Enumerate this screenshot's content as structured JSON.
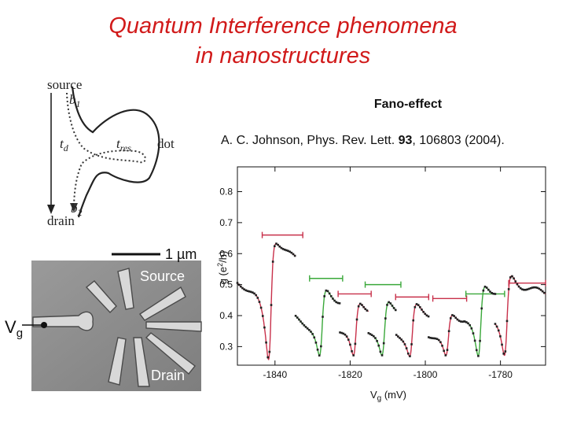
{
  "title": {
    "line1": "Quantum Interference phenomena",
    "line2": "in nanostructures"
  },
  "subtitle": "Fano-effect",
  "reference": {
    "prefix": "A. C. Johnson, Phys. Rev. Lett. ",
    "volume": "93",
    "suffix": ", 106803 (2004)."
  },
  "schematic": {
    "source": "source",
    "drain": "drain",
    "b1": "b",
    "b1_sub": "1",
    "b2": "b",
    "b2_sub": "2",
    "td": "t",
    "td_sub": "d",
    "tres": "t",
    "tres_sub": "res",
    "dot": "dot"
  },
  "micrograph": {
    "scale_label": "1 µm",
    "source_label": "Source",
    "drain_label": "Drain",
    "gate_label": "V",
    "gate_sub": "g"
  },
  "colors": {
    "title": "#d11a1a",
    "red_series": "#c8304a",
    "green_series": "#3aa83a",
    "marker": "#222222"
  },
  "chart_data": {
    "type": "line",
    "xlabel": "V",
    "xlabel_sub": "g",
    "xlabel_unit": " (mV)",
    "ylabel": "g (e",
    "ylabel_sup": "2",
    "ylabel_unit": "/h)",
    "xlim": [
      -1850,
      -1768
    ],
    "ylim": [
      0.24,
      0.88
    ],
    "xticks": [
      "-1840",
      "-1820",
      "-1800",
      "-1780"
    ],
    "xtick_values": [
      -1840,
      -1820,
      -1800,
      -1780
    ],
    "yticks": [
      "0.3",
      "0.4",
      "0.5",
      "0.6",
      "0.7",
      "0.8"
    ],
    "ytick_values": [
      0.3,
      0.4,
      0.5,
      0.6,
      0.7,
      0.8
    ],
    "grid": false,
    "resonances": [
      {
        "color": "red",
        "center": -1841.2,
        "amp": 0.32,
        "xmin": -1850,
        "xmax": -1834.5,
        "bar_y": 0.66,
        "bar_x": [
          -1843.4,
          -1832.6
        ]
      },
      {
        "color": "green",
        "center": -1827.6,
        "amp": 0.18,
        "xmin": -1834.5,
        "xmax": -1822.7,
        "bar_y": 0.52,
        "bar_x": [
          -1830.8,
          -1822.0
        ]
      },
      {
        "color": "red",
        "center": -1818.6,
        "amp": 0.15,
        "xmin": -1822.7,
        "xmax": -1815.1,
        "bar_y": 0.47,
        "bar_x": [
          -1823.2,
          -1814.4
        ]
      },
      {
        "color": "green",
        "center": -1811.0,
        "amp": 0.15,
        "xmin": -1815.1,
        "xmax": -1807.7,
        "bar_y": 0.5,
        "bar_x": [
          -1816.0,
          -1806.5
        ]
      },
      {
        "color": "red",
        "center": -1803.6,
        "amp": 0.14,
        "xmin": -1807.7,
        "xmax": -1799.1,
        "bar_y": 0.46,
        "bar_x": [
          -1807.9,
          -1799.1
        ]
      },
      {
        "color": "red",
        "center": -1794.0,
        "amp": 0.12,
        "xmin": -1799.1,
        "xmax": -1789.5,
        "bar_y": 0.455,
        "bar_x": [
          -1798.0,
          -1789.0
        ]
      },
      {
        "color": "green",
        "center": -1785.4,
        "amp": 0.2,
        "xmin": -1789.5,
        "xmax": -1781.4,
        "bar_y": 0.47,
        "bar_x": [
          -1789.2,
          -1778.9
        ]
      },
      {
        "color": "red",
        "center": -1778.4,
        "amp": 0.22,
        "xmin": -1781.4,
        "xmax": -1768,
        "bar_y": 0.505,
        "bar_x": [
          -1777.8,
          -1768
        ]
      }
    ],
    "baseline": 0.31,
    "q": 0.6,
    "width": 0.9
  }
}
